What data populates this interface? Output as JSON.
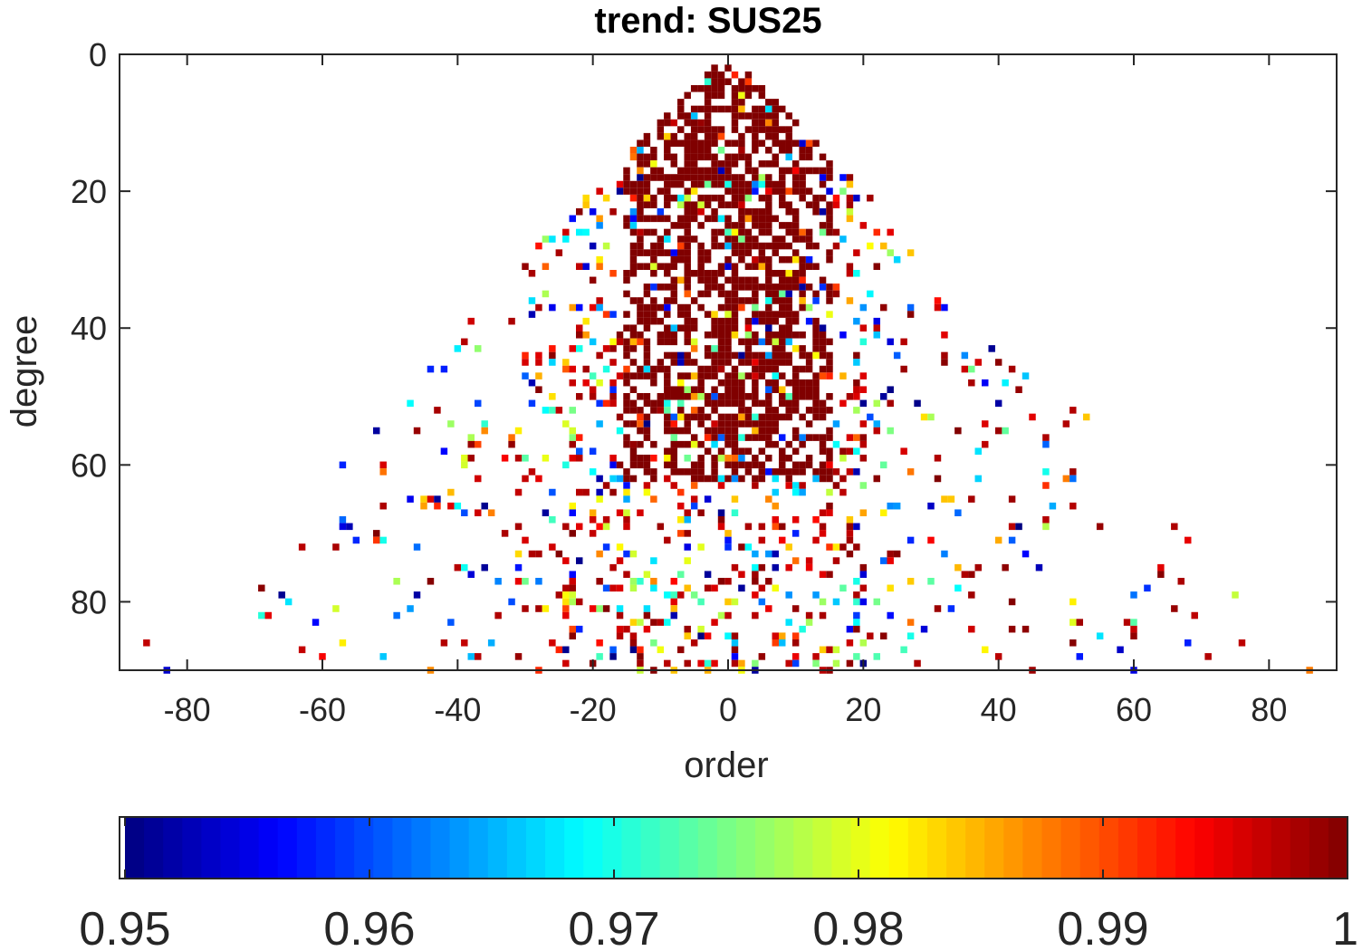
{
  "chart_data": {
    "type": "heatmap",
    "title": "trend: SUS25",
    "xlabel": "order",
    "ylabel": "degree",
    "xlim": [
      -90,
      90
    ],
    "ylim": [
      0,
      90
    ],
    "y_reversed": true,
    "xticks": [
      -80,
      -60,
      -40,
      -20,
      0,
      20,
      40,
      60,
      80
    ],
    "yticks": [
      0,
      20,
      40,
      60,
      80
    ],
    "colormap": "jet",
    "colorbar": {
      "orientation": "horizontal",
      "location": "bottom",
      "range": [
        0.95,
        1
      ],
      "ticks": [
        0.95,
        0.96,
        0.97,
        0.98,
        0.99,
        1
      ],
      "tick_labels": [
        "0.95",
        "0.96",
        "0.97",
        "0.98",
        "0.99",
        "1"
      ]
    },
    "cells_description_values": {
      "note_free": true,
      "dense_core": {
        "order_range": [
          -15,
          15
        ],
        "degree_range": [
          2,
          65
        ],
        "value": 1.0
      },
      "sparse_region": {
        "degree_range": [
          20,
          90
        ],
        "value_range": [
          0.95,
          1.0
        ]
      }
    }
  },
  "colors": {
    "axes": "#262626",
    "background": "#ffffff"
  }
}
